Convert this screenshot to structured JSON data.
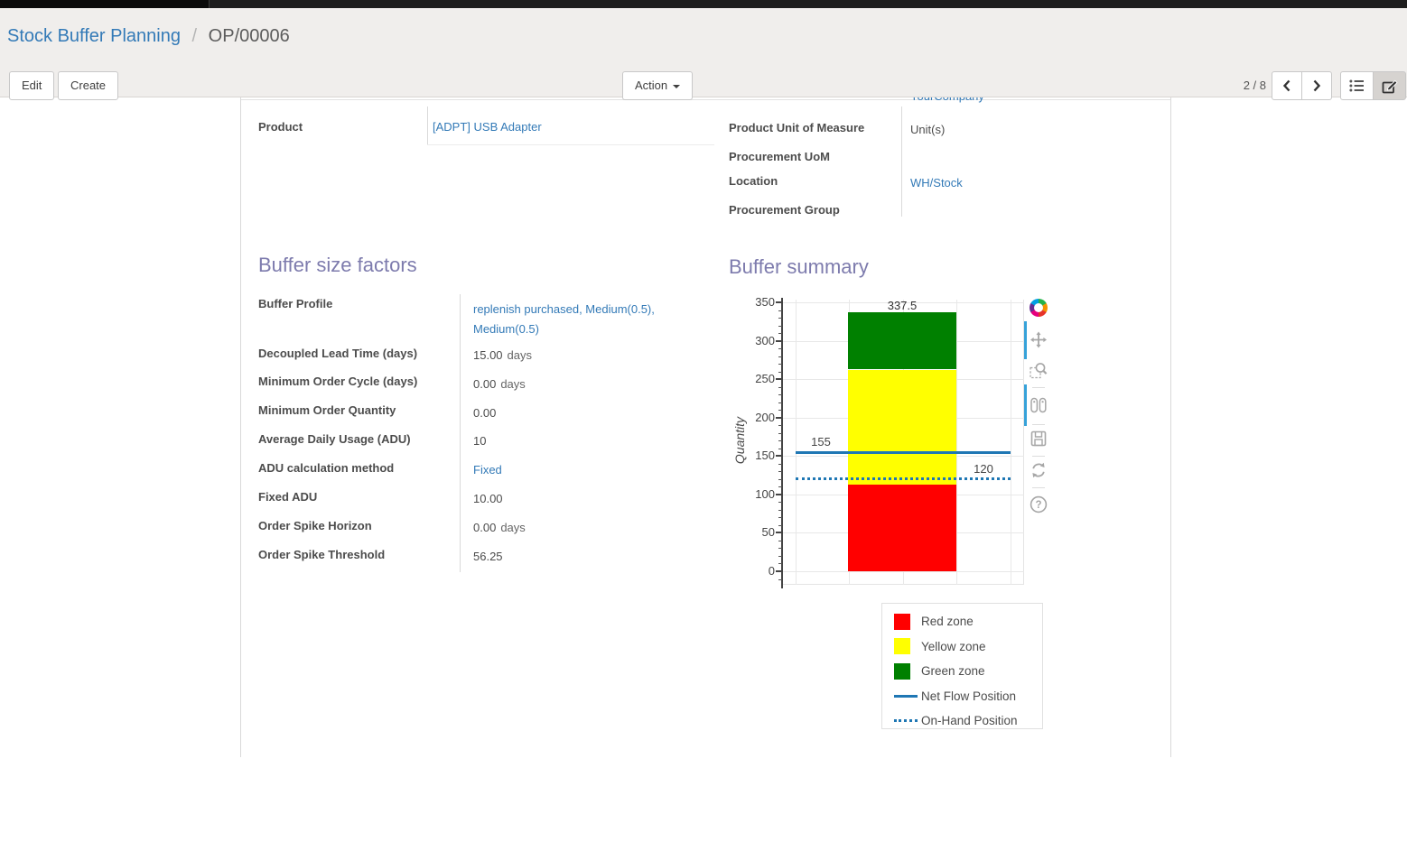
{
  "breadcrumb": {
    "parent": "Stock Buffer Planning",
    "separator": "/",
    "current": "OP/00006"
  },
  "control_panel": {
    "edit_label": "Edit",
    "create_label": "Create",
    "action_label": "Action",
    "pager": "2 / 8"
  },
  "icons": {
    "caret-down-icon": "▼",
    "chevron-left-icon": "left-angle-bracket",
    "chevron-right-icon": "right-angle-bracket",
    "list-icon": "bulleted-list",
    "form-view-icon": "pencil-in-square",
    "plotly-logo-icon": "multicolor-ring-logo",
    "pan-icon": "four-way-arrows",
    "zoom-icon": "magnifier-with-dashed-box",
    "hover-compare-icon": "two-tags",
    "download-icon": "floppy-disk",
    "reset-icon": "circular-arrows",
    "help-icon": "question-mark-in-circle"
  },
  "sheet": {
    "clipped_row_value": "YourCompany",
    "product_group": {
      "fields": [
        {
          "label": "Product",
          "value": "[ADPT] USB Adapter"
        }
      ]
    },
    "info_group": {
      "fields": [
        {
          "label": "Product Unit of Measure",
          "value": "Unit(s)"
        },
        {
          "label": "Procurement UoM",
          "value": ""
        },
        {
          "label": "Location",
          "value": "WH/Stock"
        },
        {
          "label": "Procurement Group",
          "value": ""
        }
      ]
    },
    "factors": {
      "title": "Buffer size factors",
      "fields": [
        {
          "label": "Buffer Profile",
          "value": "replenish purchased, Medium(0.5), Medium(0.5)",
          "suffix": ""
        },
        {
          "label": "Decoupled Lead Time (days)",
          "value": "15.00",
          "suffix": "days"
        },
        {
          "label": "Minimum Order Cycle (days)",
          "value": "0.00",
          "suffix": "days"
        },
        {
          "label": "Minimum Order Quantity",
          "value": "0.00",
          "suffix": ""
        },
        {
          "label": "Average Daily Usage (ADU)",
          "value": "10",
          "suffix": ""
        },
        {
          "label": "ADU calculation method",
          "value": "Fixed",
          "suffix": ""
        },
        {
          "label": "Fixed ADU",
          "value": "10.00",
          "suffix": ""
        },
        {
          "label": "Order Spike Horizon",
          "value": "0.00",
          "suffix": "days"
        },
        {
          "label": "Order Spike Threshold",
          "value": "56.25",
          "suffix": ""
        }
      ]
    },
    "summary": {
      "title": "Buffer summary"
    }
  },
  "chart_data": {
    "type": "bar",
    "title": "Buffer summary",
    "xlabel": "",
    "ylabel": "Quantity",
    "ylim": [
      0,
      350
    ],
    "yticks": [
      0,
      50,
      100,
      150,
      200,
      250,
      300,
      350
    ],
    "minor_tick_step": 10,
    "grid": true,
    "series": [
      {
        "name": "Red zone",
        "from": 0,
        "to": 112.5,
        "value": 112.5,
        "label": "112.5",
        "color": "#ff0000"
      },
      {
        "name": "Yellow zone",
        "from": 112.5,
        "to": 262.5,
        "value": 150,
        "label": "262.5",
        "color": "#ffff00"
      },
      {
        "name": "Green zone",
        "from": 262.5,
        "to": 337.5,
        "value": 75,
        "label": "337.5",
        "color": "#008000"
      }
    ],
    "lines": [
      {
        "name": "Net Flow Position",
        "value": 155,
        "label": "155",
        "style": "solid",
        "color": "#1f77b4"
      },
      {
        "name": "On-Hand Position",
        "value": 120,
        "label": "120",
        "style": "dotted",
        "color": "#1f77b4"
      }
    ],
    "legend_position": "bottom-right",
    "legend_items": [
      {
        "label": "Red zone",
        "swatch": "square",
        "color": "#ff0000"
      },
      {
        "label": "Yellow zone",
        "swatch": "square",
        "color": "#ffff00"
      },
      {
        "label": "Green zone",
        "swatch": "square",
        "color": "#008000"
      },
      {
        "label": "Net Flow Position",
        "swatch": "line",
        "color": "#1f77b4"
      },
      {
        "label": "On-Hand Position",
        "swatch": "dotted",
        "color": "#1f77b4"
      }
    ],
    "modebar": [
      "pan",
      "box-zoom",
      "compare-hover",
      "download",
      "reset-axes",
      "help"
    ]
  }
}
